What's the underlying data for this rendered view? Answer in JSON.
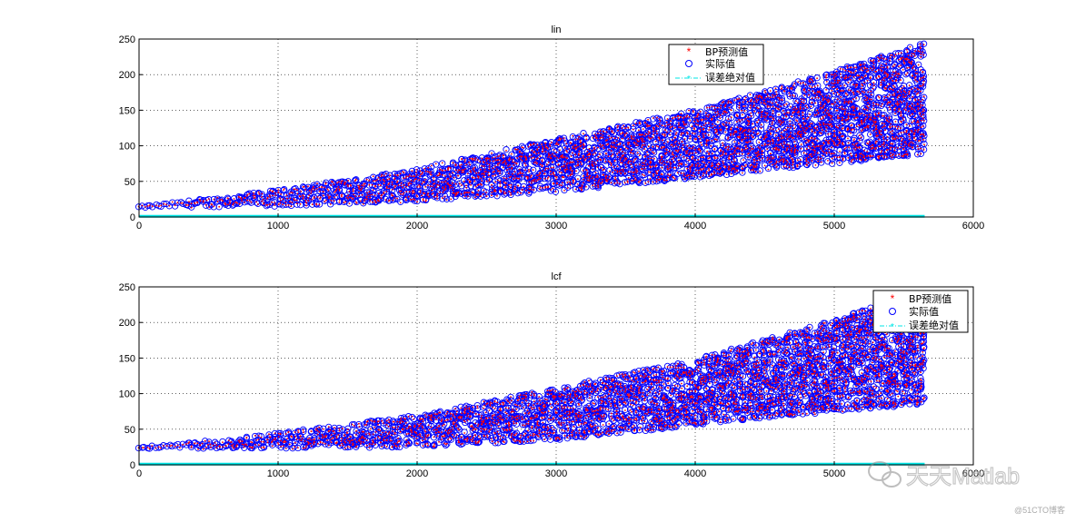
{
  "chart_data": [
    {
      "type": "scatter",
      "title": "lin",
      "xlabel": "",
      "ylabel": "",
      "xlim": [
        0,
        6000
      ],
      "ylim": [
        0,
        250
      ],
      "x_ticks": [
        0,
        1000,
        2000,
        3000,
        4000,
        5000,
        6000
      ],
      "y_ticks": [
        0,
        50,
        100,
        150,
        200,
        250
      ],
      "grid": true,
      "legend_position": "top-right",
      "n_points": 5650,
      "envelope": {
        "x": [
          0,
          1000,
          2000,
          3000,
          4000,
          5000,
          5650
        ],
        "y_lower": [
          13,
          15,
          22,
          35,
          55,
          75,
          88
        ],
        "y_upper": [
          15,
          38,
          68,
          110,
          150,
          205,
          245
        ]
      },
      "series": [
        {
          "name": "BP预测值",
          "marker": "*",
          "color": "#ff0000"
        },
        {
          "name": "实际值",
          "marker": "o",
          "color": "#0000ff"
        },
        {
          "name": "误差绝对值",
          "marker": "-.*",
          "color": "#00e6e6",
          "values_approx": 1
        }
      ]
    },
    {
      "type": "scatter",
      "title": "lcf",
      "xlabel": "",
      "ylabel": "",
      "xlim": [
        0,
        6000
      ],
      "ylim": [
        0,
        250
      ],
      "x_ticks": [
        0,
        1000,
        2000,
        3000,
        4000,
        5000,
        6000
      ],
      "y_ticks": [
        0,
        50,
        100,
        150,
        200,
        250
      ],
      "grid": true,
      "legend_position": "top-right",
      "n_points": 5650,
      "envelope": {
        "x": [
          0,
          1000,
          2000,
          3000,
          4000,
          5000,
          5650
        ],
        "y_lower": [
          23,
          23,
          25,
          35,
          55,
          75,
          85
        ],
        "y_upper": [
          25,
          45,
          70,
          108,
          148,
          205,
          245
        ]
      },
      "series": [
        {
          "name": "BP预测值",
          "marker": "*",
          "color": "#ff0000"
        },
        {
          "name": "实际值",
          "marker": "o",
          "color": "#0000ff"
        },
        {
          "name": "误差绝对值",
          "marker": "-.*",
          "color": "#00e6e6",
          "values_approx": 1
        }
      ]
    }
  ],
  "watermark": {
    "icon": "wechat-icon",
    "text": "天天Matlab",
    "credit": "@51CTO博客"
  }
}
